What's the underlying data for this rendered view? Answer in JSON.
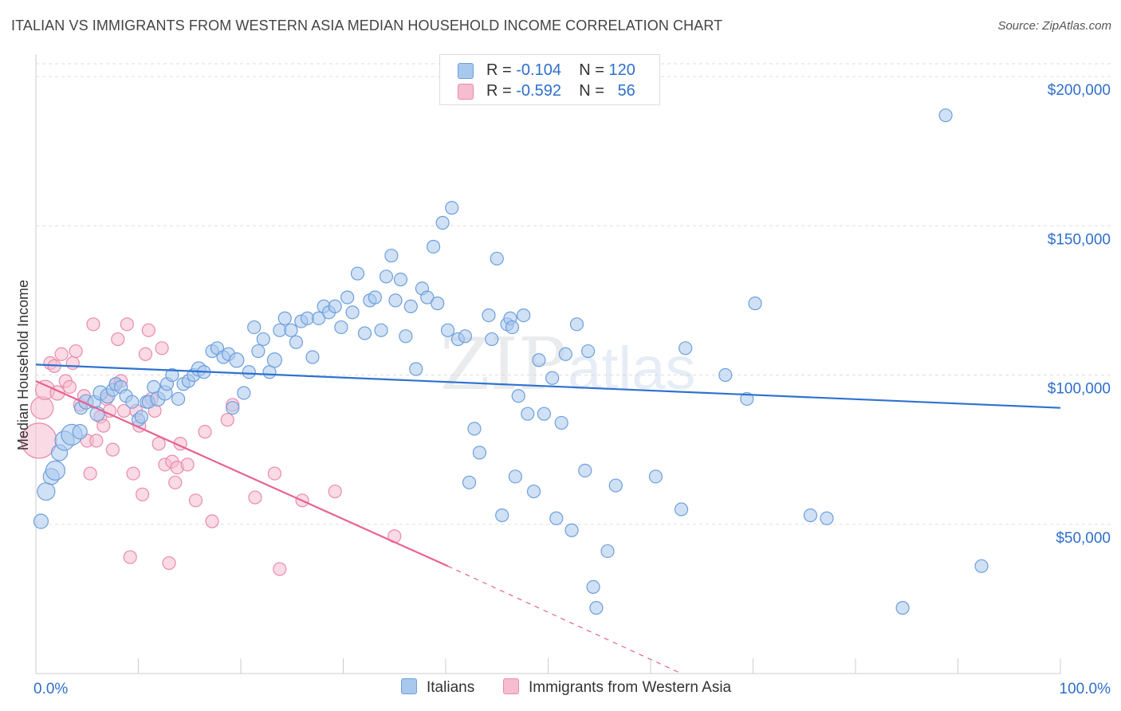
{
  "header": {
    "title": "ITALIAN VS IMMIGRANTS FROM WESTERN ASIA MEDIAN HOUSEHOLD INCOME CORRELATION CHART",
    "source": "Source: ZipAtlas.com"
  },
  "watermark": {
    "zip": "ZIP",
    "atlas": "atlas"
  },
  "legend": {
    "italians": {
      "r_label": "R =",
      "r_value": "-0.104",
      "n_label": "N =",
      "n_value": "120"
    },
    "immigrants": {
      "r_label": "R =",
      "r_value": "-0.592",
      "n_label": "N =",
      "n_value": "56"
    }
  },
  "bottom_legend": {
    "italians": "Italians",
    "immigrants": "Immigrants from Western Asia"
  },
  "colors": {
    "blue_fill": "#a9c8ee",
    "blue_stroke": "#6d9fdc",
    "blue_line": "#2f72d0",
    "pink_fill": "#f6bcd0",
    "pink_stroke": "#ea8aab",
    "pink_line": "#e8628f",
    "axis_label": "#2f6fca",
    "grid": "#dddddd"
  },
  "chart_data": {
    "type": "scatter",
    "title": "ITALIAN VS IMMIGRANTS FROM WESTERN ASIA MEDIAN HOUSEHOLD INCOME CORRELATION CHART",
    "ylabel": "Median Household Income",
    "xlabel": "",
    "xlim": [
      0,
      100
    ],
    "ylim": [
      0,
      200000
    ],
    "x_tick_labels": [
      "0.0%",
      "100.0%"
    ],
    "y_ticks": [
      50000,
      100000,
      150000,
      200000
    ],
    "y_tick_labels": [
      "$50,000",
      "$100,000",
      "$150,000",
      "$200,000"
    ],
    "grid": true,
    "legend_position": "top-center",
    "series": [
      {
        "name": "Italians",
        "r": -0.104,
        "n": 120,
        "trend": {
          "x": [
            0,
            100
          ],
          "y": [
            103500,
            89000
          ]
        },
        "points": [
          [
            0.5,
            51,
            9
          ],
          [
            1.0,
            61,
            11
          ],
          [
            1.5,
            66,
            10
          ],
          [
            1.9,
            68,
            12
          ],
          [
            2.3,
            74,
            10
          ],
          [
            2.8,
            78,
            12
          ],
          [
            3.5,
            80,
            13
          ],
          [
            4.3,
            81,
            9
          ],
          [
            4.4,
            89,
            8
          ],
          [
            4.9,
            91,
            9
          ],
          [
            5.7,
            91,
            8
          ],
          [
            6.0,
            87,
            9
          ],
          [
            6.3,
            94,
            9
          ],
          [
            7.0,
            93,
            9
          ],
          [
            7.5,
            95,
            8
          ],
          [
            7.8,
            97,
            8
          ],
          [
            8.3,
            96,
            8
          ],
          [
            8.8,
            93,
            8
          ],
          [
            9.4,
            91,
            8
          ],
          [
            10.0,
            85,
            8
          ],
          [
            10.3,
            86,
            8
          ],
          [
            10.8,
            91,
            8
          ],
          [
            11.0,
            91,
            8
          ],
          [
            11.5,
            96,
            8
          ],
          [
            11.9,
            92,
            9
          ],
          [
            12.6,
            94,
            9
          ],
          [
            12.8,
            97,
            8
          ],
          [
            13.3,
            100,
            8
          ],
          [
            13.9,
            92,
            8
          ],
          [
            14.4,
            97,
            8
          ],
          [
            14.9,
            98,
            8
          ],
          [
            15.4,
            100,
            8
          ],
          [
            15.9,
            102,
            9
          ],
          [
            16.4,
            101,
            8
          ],
          [
            17.2,
            108,
            8
          ],
          [
            17.7,
            109,
            8
          ],
          [
            18.3,
            106,
            8
          ],
          [
            18.8,
            107,
            8
          ],
          [
            19.2,
            89,
            8
          ],
          [
            19.6,
            105,
            9
          ],
          [
            20.3,
            94,
            8
          ],
          [
            20.8,
            101,
            8
          ],
          [
            21.3,
            116,
            8
          ],
          [
            21.7,
            108,
            8
          ],
          [
            22.2,
            112,
            8
          ],
          [
            22.8,
            101,
            8
          ],
          [
            23.3,
            105,
            9
          ],
          [
            23.8,
            115,
            8
          ],
          [
            24.3,
            119,
            8
          ],
          [
            24.9,
            115,
            8
          ],
          [
            25.4,
            111,
            8
          ],
          [
            25.9,
            118,
            8
          ],
          [
            26.5,
            119,
            8
          ],
          [
            27.0,
            106,
            8
          ],
          [
            27.6,
            119,
            8
          ],
          [
            28.1,
            123,
            8
          ],
          [
            28.6,
            121,
            8
          ],
          [
            29.2,
            123,
            8
          ],
          [
            29.8,
            116,
            8
          ],
          [
            30.4,
            126,
            8
          ],
          [
            30.9,
            121,
            8
          ],
          [
            31.4,
            134,
            8
          ],
          [
            32.1,
            114,
            8
          ],
          [
            32.6,
            125,
            8
          ],
          [
            33.1,
            126,
            8
          ],
          [
            33.7,
            115,
            8
          ],
          [
            34.2,
            133,
            8
          ],
          [
            34.7,
            140,
            8
          ],
          [
            35.1,
            125,
            8
          ],
          [
            35.6,
            132,
            8
          ],
          [
            36.1,
            113,
            8
          ],
          [
            36.6,
            123,
            8
          ],
          [
            37.1,
            102,
            8
          ],
          [
            37.7,
            129,
            8
          ],
          [
            38.2,
            126,
            8
          ],
          [
            38.8,
            143,
            8
          ],
          [
            39.2,
            124,
            8
          ],
          [
            39.7,
            151,
            8
          ],
          [
            40.2,
            115,
            8
          ],
          [
            40.6,
            156,
            8
          ],
          [
            41.2,
            112,
            8
          ],
          [
            41.9,
            113,
            8
          ],
          [
            42.3,
            64,
            8
          ],
          [
            42.8,
            82,
            8
          ],
          [
            43.3,
            74,
            8
          ],
          [
            44.2,
            120,
            8
          ],
          [
            44.5,
            112,
            8
          ],
          [
            45.0,
            139,
            8
          ],
          [
            45.5,
            53,
            8
          ],
          [
            46.0,
            117,
            8
          ],
          [
            46.3,
            119,
            8
          ],
          [
            46.5,
            116,
            8
          ],
          [
            46.8,
            66,
            8
          ],
          [
            47.1,
            93,
            8
          ],
          [
            47.6,
            120,
            8
          ],
          [
            48.0,
            87,
            8
          ],
          [
            48.6,
            61,
            8
          ],
          [
            49.1,
            105,
            8
          ],
          [
            49.6,
            87,
            8
          ],
          [
            50.4,
            99,
            8
          ],
          [
            50.8,
            52,
            8
          ],
          [
            51.3,
            84,
            8
          ],
          [
            51.7,
            107,
            8
          ],
          [
            52.3,
            48,
            8
          ],
          [
            52.8,
            117,
            8
          ],
          [
            53.6,
            68,
            8
          ],
          [
            53.9,
            108,
            8
          ],
          [
            54.4,
            29,
            8
          ],
          [
            54.7,
            22,
            8
          ],
          [
            55.8,
            41,
            8
          ],
          [
            56.6,
            63,
            8
          ],
          [
            60.5,
            66,
            8
          ],
          [
            63.0,
            55,
            8
          ],
          [
            63.4,
            109,
            8
          ],
          [
            67.3,
            100,
            8
          ],
          [
            69.4,
            92,
            8
          ],
          [
            70.2,
            124,
            8
          ],
          [
            75.6,
            53,
            8
          ],
          [
            77.2,
            52,
            8
          ],
          [
            84.6,
            22,
            8
          ],
          [
            88.8,
            187,
            8
          ],
          [
            92.3,
            36,
            8
          ]
        ]
      },
      {
        "name": "Immigrants from Western Asia",
        "r": -0.592,
        "n": 56,
        "trend": {
          "x": [
            0,
            40.2
          ],
          "y": [
            98000,
            36000
          ]
        },
        "trend_dashed": {
          "x": [
            40.2,
            63.0
          ],
          "y": [
            36000,
            0
          ]
        },
        "points": [
          [
            0.3,
            78,
            22
          ],
          [
            0.6,
            89,
            14
          ],
          [
            0.9,
            95,
            12
          ],
          [
            1.4,
            104,
            8
          ],
          [
            1.8,
            103,
            8
          ],
          [
            2.1,
            94,
            9
          ],
          [
            2.5,
            107,
            8
          ],
          [
            2.9,
            98,
            8
          ],
          [
            3.3,
            96,
            8
          ],
          [
            3.6,
            104,
            8
          ],
          [
            3.9,
            108,
            8
          ],
          [
            4.3,
            90,
            8
          ],
          [
            4.7,
            93,
            8
          ],
          [
            5.0,
            78,
            8
          ],
          [
            5.3,
            67,
            8
          ],
          [
            5.6,
            117,
            8
          ],
          [
            5.9,
            78,
            8
          ],
          [
            6.3,
            86,
            8
          ],
          [
            6.6,
            83,
            8
          ],
          [
            6.9,
            92,
            8
          ],
          [
            7.2,
            88,
            8
          ],
          [
            7.5,
            75,
            8
          ],
          [
            7.8,
            97,
            8
          ],
          [
            8.0,
            112,
            8
          ],
          [
            8.3,
            98,
            8
          ],
          [
            8.6,
            88,
            8
          ],
          [
            8.9,
            117,
            8
          ],
          [
            9.2,
            39,
            8
          ],
          [
            9.5,
            67,
            8
          ],
          [
            9.8,
            88,
            8
          ],
          [
            10.1,
            83,
            8
          ],
          [
            10.4,
            60,
            8
          ],
          [
            10.7,
            107,
            8
          ],
          [
            11.0,
            115,
            8
          ],
          [
            11.3,
            92,
            8
          ],
          [
            11.6,
            88,
            8
          ],
          [
            12.0,
            77,
            8
          ],
          [
            12.3,
            109,
            8
          ],
          [
            12.6,
            70,
            8
          ],
          [
            13.0,
            37,
            8
          ],
          [
            13.3,
            71,
            8
          ],
          [
            13.6,
            64,
            8
          ],
          [
            13.8,
            69,
            8
          ],
          [
            14.1,
            77,
            8
          ],
          [
            14.8,
            70,
            8
          ],
          [
            15.6,
            58,
            8
          ],
          [
            16.5,
            81,
            8
          ],
          [
            17.2,
            51,
            8
          ],
          [
            18.7,
            85,
            8
          ],
          [
            19.2,
            90,
            8
          ],
          [
            21.4,
            59,
            8
          ],
          [
            23.3,
            67,
            8
          ],
          [
            23.8,
            35,
            8
          ],
          [
            26.0,
            58,
            8
          ],
          [
            29.2,
            61,
            8
          ],
          [
            35.0,
            46,
            8
          ]
        ]
      }
    ]
  }
}
